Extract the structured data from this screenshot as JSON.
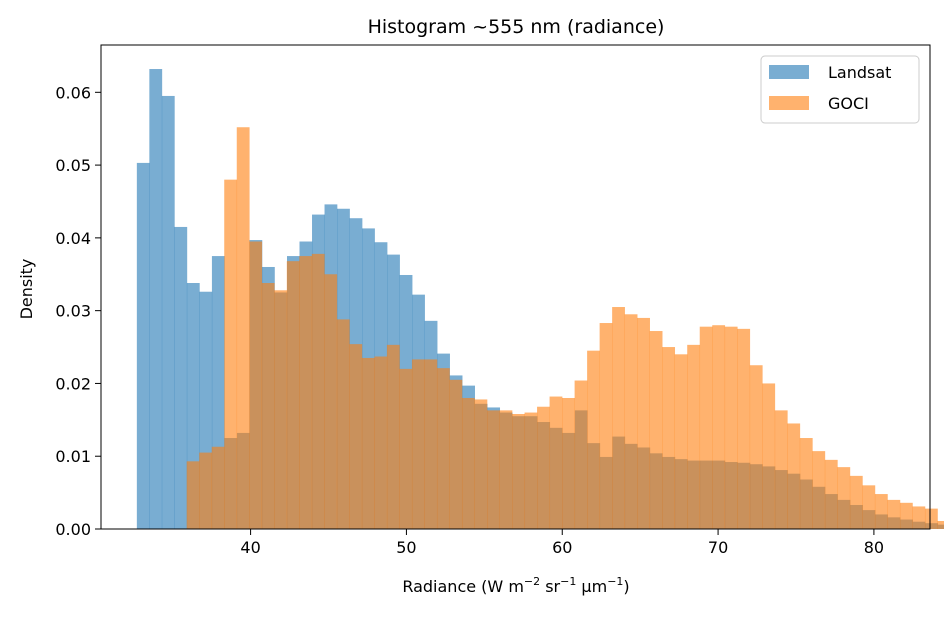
{
  "chart_data": {
    "type": "histogram",
    "title": "Histogram ~555 nm (radiance)",
    "xlabel": {
      "base": "Radiance (W m",
      "e1": "−2",
      "mid": " sr",
      "e2": "−1",
      "tail": " µm",
      "e3": "−1",
      "end": ")"
    },
    "ylabel": "Density",
    "xlim": [
      30.4,
      83.6
    ],
    "ylim": [
      0,
      0.0665
    ],
    "xticks": [
      40,
      50,
      60,
      70,
      80
    ],
    "yticks": [
      0.0,
      0.01,
      0.02,
      0.03,
      0.04,
      0.05,
      0.06
    ],
    "xtick_labels": [
      "40",
      "50",
      "60",
      "70",
      "80"
    ],
    "ytick_labels": [
      "0.00",
      "0.01",
      "0.02",
      "0.03",
      "0.04",
      "0.05",
      "0.06"
    ],
    "legend_position": "top-right",
    "series": [
      {
        "name": "Landsat",
        "color": "#1f77b4",
        "alpha": 0.6,
        "bin_start": 32.7,
        "bin_width": 0.803,
        "values": [
          0.0503,
          0.0632,
          0.0595,
          0.0415,
          0.0338,
          0.0326,
          0.0375,
          0.0125,
          0.0132,
          0.0397,
          0.036,
          0.0325,
          0.0375,
          0.0395,
          0.0432,
          0.0446,
          0.044,
          0.0427,
          0.0413,
          0.0394,
          0.0377,
          0.0349,
          0.0322,
          0.0286,
          0.0241,
          0.0211,
          0.0197,
          0.0172,
          0.0167,
          0.016,
          0.0155,
          0.0155,
          0.0147,
          0.0139,
          0.0132,
          0.0163,
          0.0118,
          0.0099,
          0.0127,
          0.0117,
          0.0112,
          0.0104,
          0.0099,
          0.0096,
          0.0094,
          0.0094,
          0.0094,
          0.0092,
          0.0091,
          0.0089,
          0.0086,
          0.0081,
          0.0076,
          0.0068,
          0.0058,
          0.0048,
          0.004,
          0.0033,
          0.0026,
          0.002,
          0.0016,
          0.0013,
          0.001,
          0.0008,
          0.0006,
          0.0004,
          0.0003,
          0.0002,
          0.0002,
          0.0001,
          0.0001,
          0.0001,
          0.0001,
          0.0001,
          0.0001,
          0.0001,
          0.0001,
          0.0001,
          0.0,
          0.0,
          0.0,
          0.0,
          0.0,
          0.0,
          0.0,
          0.0,
          0.0,
          0.0,
          0.0,
          0.0,
          0.0,
          0.0,
          0.0,
          0.0,
          0.0,
          0.0,
          0.0,
          0.0
        ]
      },
      {
        "name": "GOCI",
        "color": "#ff7f0e",
        "alpha": 0.6,
        "bin_start": 35.9,
        "bin_width": 0.803,
        "values": [
          0.0093,
          0.0105,
          0.0113,
          0.048,
          0.0552,
          0.0395,
          0.0338,
          0.0328,
          0.0368,
          0.0375,
          0.0378,
          0.035,
          0.0288,
          0.0254,
          0.0235,
          0.0237,
          0.0253,
          0.022,
          0.0233,
          0.0233,
          0.0221,
          0.0205,
          0.018,
          0.0178,
          0.0163,
          0.0163,
          0.0158,
          0.016,
          0.0168,
          0.0182,
          0.018,
          0.0204,
          0.0245,
          0.0283,
          0.0305,
          0.0295,
          0.029,
          0.0272,
          0.025,
          0.024,
          0.0253,
          0.0278,
          0.028,
          0.0278,
          0.0275,
          0.0225,
          0.02,
          0.0163,
          0.0145,
          0.0125,
          0.0107,
          0.0095,
          0.0085,
          0.0073,
          0.006,
          0.0048,
          0.004,
          0.0036,
          0.0031,
          0.0028,
          0.0011,
          0.001,
          0.0009,
          0.0008,
          0.0007,
          0.0006,
          0.0005,
          0.0004,
          0.0003,
          0.0002,
          0.0001
        ]
      }
    ]
  }
}
